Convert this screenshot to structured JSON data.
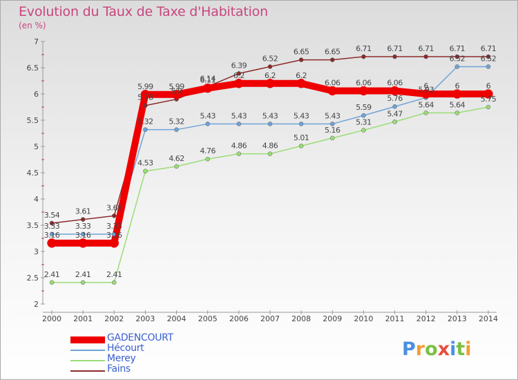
{
  "title": "Evolution du Taux de Taxe d'Habitation",
  "subtitle": "(en %)",
  "logo": {
    "text": "Proxiti",
    "letters": [
      {
        "ch": "P",
        "color": "#4a90e2"
      },
      {
        "ch": "r",
        "color": "#f39c34"
      },
      {
        "ch": "o",
        "color": "#7bc043"
      },
      {
        "ch": "x",
        "color": "#e84c3d"
      },
      {
        "ch": "i",
        "color": "#4a90e2"
      },
      {
        "ch": "t",
        "color": "#7bc043"
      },
      {
        "ch": "i",
        "color": "#f39c34"
      }
    ]
  },
  "chart_data": {
    "type": "line",
    "title": "Evolution du Taux de Taxe d'Habitation",
    "ylabel": "(en %)",
    "xlabel": "",
    "x": [
      "2000",
      "2001",
      "2002",
      "2003",
      "2004",
      "2005",
      "2006",
      "2007",
      "2008",
      "2009",
      "2010",
      "2011",
      "2012",
      "2013",
      "2014"
    ],
    "ylim": [
      2,
      7
    ],
    "yticks": [
      "2",
      "2.5",
      "3",
      "3.5",
      "4",
      "4.5",
      "5",
      "5.5",
      "6",
      "6.5",
      "7"
    ],
    "grid": false,
    "legend": "bottom-left",
    "series": [
      {
        "name": "GADENCOURT",
        "color": "#ee0000",
        "emphasis": true,
        "values": [
          3.16,
          3.16,
          3.16,
          5.99,
          5.99,
          6.11,
          6.2,
          6.2,
          6.2,
          6.06,
          6.06,
          6.06,
          6,
          6,
          6
        ],
        "labels": [
          "3.16",
          "3.16",
          "3.16",
          "5.99",
          "5.99",
          "6.11",
          "6.2",
          "6.2",
          "6.2",
          "6.06",
          "6.06",
          "6.06",
          "6",
          "6",
          "6"
        ]
      },
      {
        "name": "Hécourt",
        "color": "#6fa3d8",
        "values": [
          3.33,
          3.33,
          3.33,
          5.32,
          5.32,
          5.43,
          5.43,
          5.43,
          5.43,
          5.43,
          5.59,
          5.76,
          5.93,
          6.52,
          6.52
        ],
        "labels": [
          "3.33",
          "3.33",
          "3.33",
          "5.32",
          "5.32",
          "5.43",
          "5.43",
          "5.43",
          "5.43",
          "5.43",
          "5.59",
          "5.76",
          "5.93",
          "6.52",
          "6.52"
        ]
      },
      {
        "name": "Merey",
        "color": "#99dd77",
        "values": [
          2.41,
          2.41,
          2.41,
          4.53,
          4.62,
          4.76,
          4.86,
          4.86,
          5.01,
          5.16,
          5.31,
          5.47,
          5.64,
          5.64,
          5.75
        ],
        "labels": [
          "2.41",
          "2.41",
          "2.41",
          "4.53",
          "4.62",
          "4.76",
          "4.86",
          "4.86",
          "5.01",
          "5.16",
          "5.31",
          "5.47",
          "5.64",
          "5.64",
          "5.75"
        ]
      },
      {
        "name": "Fains",
        "color": "#8b2a2a",
        "values": [
          3.54,
          3.61,
          3.68,
          5.78,
          5.9,
          6.14,
          6.39,
          6.52,
          6.65,
          6.65,
          6.71,
          6.71,
          6.71,
          6.71,
          6.71
        ],
        "labels": [
          "3.54",
          "3.61",
          "3.68",
          "5.78",
          "5.9",
          "6.14",
          "6.39",
          "6.52",
          "6.65",
          "6.65",
          "6.71",
          "6.71",
          "6.71",
          "6.71",
          "6.71"
        ]
      }
    ]
  }
}
